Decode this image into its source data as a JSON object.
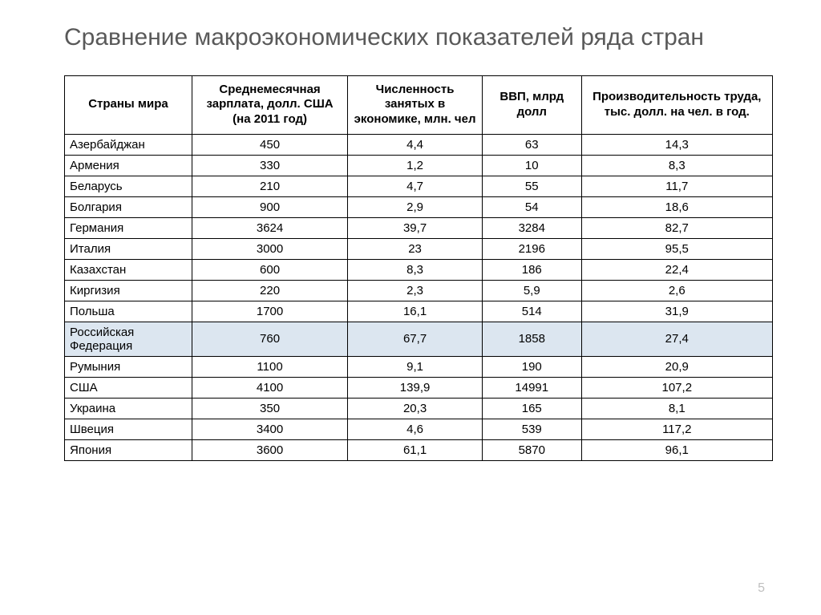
{
  "title": "Сравнение макроэкономических показателей ряда стран",
  "page_number": "5",
  "table": {
    "type": "table",
    "columns": [
      "Страны мира",
      "Среднемесячная зарплата, долл. США (на 2011 год)",
      "Численность занятых в экономике, млн. чел",
      "ВВП, млрд долл",
      "Производительность труда, тыс. долл. на чел. в год."
    ],
    "column_widths_pct": [
      18,
      22,
      19,
      14,
      27
    ],
    "column_align": [
      "left",
      "center",
      "center",
      "center",
      "center"
    ],
    "highlight_row_index": 9,
    "highlight_bg": "#dce6f0",
    "border_color": "#000000",
    "header_fontweight": 700,
    "body_fontsize": 15,
    "rows": [
      [
        "Азербайджан",
        "450",
        "4,4",
        "63",
        "14,3"
      ],
      [
        "Армения",
        "330",
        "1,2",
        "10",
        "8,3"
      ],
      [
        "Беларусь",
        "210",
        "4,7",
        "55",
        "11,7"
      ],
      [
        "Болгария",
        "900",
        "2,9",
        "54",
        "18,6"
      ],
      [
        "Германия",
        "3624",
        "39,7",
        "3284",
        "82,7"
      ],
      [
        "Италия",
        "3000",
        "23",
        "2196",
        "95,5"
      ],
      [
        "Казахстан",
        "600",
        "8,3",
        "186",
        "22,4"
      ],
      [
        "Киргизия",
        "220",
        "2,3",
        "5,9",
        "2,6"
      ],
      [
        "Польша",
        "1700",
        "16,1",
        "514",
        "31,9"
      ],
      [
        "Российская Федерация",
        "760",
        "67,7",
        "1858",
        "27,4"
      ],
      [
        "Румыния",
        "1100",
        "9,1",
        "190",
        "20,9"
      ],
      [
        "США",
        "4100",
        "139,9",
        "14991",
        "107,2"
      ],
      [
        "Украина",
        "350",
        "20,3",
        "165",
        "8,1"
      ],
      [
        "Швеция",
        "3400",
        "4,6",
        "539",
        "117,2"
      ],
      [
        "Япония",
        "3600",
        "61,1",
        "5870",
        "96,1"
      ]
    ]
  },
  "colors": {
    "title": "#595959",
    "pagenum": "#bfbfbf",
    "background": "#ffffff"
  }
}
